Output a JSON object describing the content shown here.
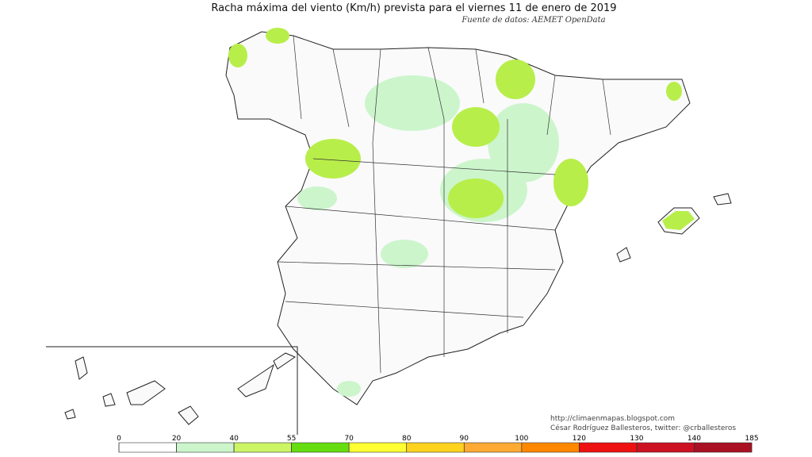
{
  "header": {
    "title": "Racha máxima del viento (Km/h) prevista para el viernes 11 de enero de 2019",
    "source": "Fuente de datos: AEMET OpenData"
  },
  "credits": [
    "http://climaenmapas.blogspot.com",
    "César Rodríguez Ballesteros, twitter: @crballesteros"
  ],
  "legend": {
    "ticks": [
      0,
      20,
      40,
      55,
      70,
      80,
      90,
      100,
      120,
      130,
      140,
      185
    ],
    "colors": [
      "#ffffff",
      "#ccf5cc",
      "#ccf566",
      "#66dd11",
      "#ffff33",
      "#ffd21e",
      "#ffaa33",
      "#ff8800",
      "#ee1111",
      "#cc1122",
      "#aa1122"
    ]
  }
}
